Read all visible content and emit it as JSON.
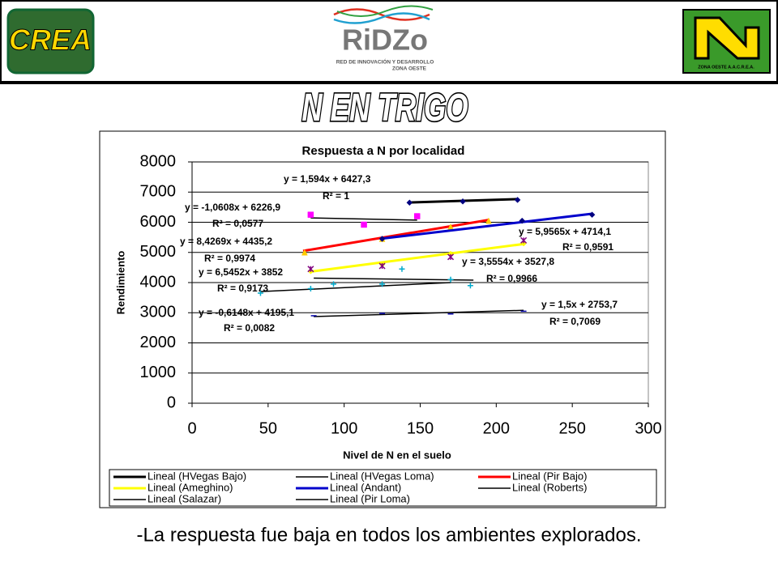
{
  "header": {
    "left_logo": "CREA",
    "center_logo": "RiDZo",
    "center_logo_line1": "RED DE INNOVACIÓN Y DESARROLLO",
    "center_logo_line2": "ZONA OESTE",
    "right_logo": "ZONA OESTE A.A.C.R.E.A."
  },
  "slide_title": "N EN TRIGO",
  "chart_data": {
    "type": "scatter",
    "title": "Respuesta a N por localidad",
    "x_label": "Nivel de N en el suelo",
    "y_label": "Rendimiento",
    "xlim": [
      0,
      300
    ],
    "xticks": [
      0,
      50,
      100,
      150,
      200,
      250,
      300
    ],
    "ylim": [
      0,
      8000
    ],
    "yticks": [
      0,
      1000,
      2000,
      3000,
      4000,
      5000,
      6000,
      7000,
      8000
    ],
    "grid": true,
    "series": [
      {
        "name": "Lineal (HVegas Bajo)",
        "color": "#000000",
        "marker": "diamond",
        "marker_color": "#000080",
        "x": [
          143,
          178,
          214
        ],
        "values": [
          6650,
          6690,
          6740
        ],
        "trend_x": [
          143,
          214
        ],
        "trend_y": [
          6655,
          6768
        ],
        "line_width": 3
      },
      {
        "name": "Lineal (HVegas Loma)",
        "color": "#000000",
        "marker": "square",
        "marker_color": "#ff00ff",
        "x": [
          78,
          113,
          148
        ],
        "values": [
          6250,
          5920,
          6200
        ],
        "trend_x": [
          78,
          148
        ],
        "trend_y": [
          6144,
          6070
        ],
        "line_width": 1.5
      },
      {
        "name": "Lineal (Pir Bajo)",
        "color": "#ff0000",
        "marker": "triangle",
        "marker_color": "#ffcc00",
        "x": [
          74,
          125,
          170,
          195
        ],
        "values": [
          5000,
          5450,
          5850,
          6050
        ],
        "trend_x": [
          73,
          195
        ],
        "trend_y": [
          5050,
          6078
        ],
        "line_width": 3
      },
      {
        "name": "Lineal (Ameghino)",
        "color": "#ffff00",
        "marker": "diamond",
        "marker_color": "#ffff00",
        "x": [
          78,
          125,
          170,
          218
        ],
        "values": [
          4380,
          4600,
          4950,
          5300
        ],
        "trend_x": [
          78,
          218
        ],
        "trend_y": [
          4363,
          5279
        ],
        "line_width": 3
      },
      {
        "name": "Lineal (Andant)",
        "color": "#0000cc",
        "marker": "diamond",
        "marker_color": "#000080",
        "x": [
          125,
          217,
          263
        ],
        "values": [
          5450,
          6050,
          6250
        ],
        "trend_x": [
          125,
          263
        ],
        "trend_y": [
          5459,
          6281
        ],
        "line_width": 3
      },
      {
        "name": "Lineal (Roberts)",
        "color": "#000000",
        "marker": "asterisk",
        "marker_color": "#800080",
        "x": [
          78,
          125,
          170,
          218
        ],
        "values": [
          4450,
          4550,
          4850,
          5400
        ],
        "trend_x": [
          45,
          170
        ],
        "trend_y": [
          3700,
          4000
        ],
        "line_width": 1.5
      },
      {
        "name": "Lineal (Salazar)",
        "color": "#000000",
        "marker": "plus",
        "marker_color": "#00aacc",
        "x": [
          45,
          78,
          93,
          125,
          138,
          170,
          183
        ],
        "values": [
          3650,
          3800,
          3950,
          3950,
          4450,
          4100,
          3900
        ],
        "trend_x": [
          80,
          185
        ],
        "trend_y": [
          4146,
          4081
        ],
        "line_width": 1.5
      },
      {
        "name": "Lineal (Pir Loma)",
        "color": "#000000",
        "marker": "dash",
        "marker_color": "#0000aa",
        "x": [
          80,
          125,
          170,
          218
        ],
        "values": [
          2900,
          2980,
          2960,
          3050
        ],
        "trend_x": [
          80,
          218
        ],
        "trend_y": [
          2874,
          3081
        ],
        "line_width": 1.5
      }
    ],
    "annotations": [
      "y = 1,594x + 6427,3",
      "R² = 1",
      "y = -1,0608x + 6226,9",
      "R² = 0,0577",
      "y = 8,4269x + 4435,2",
      "R² = 0,9974",
      "y = 6,5452x + 3852",
      "R² = 0,9173",
      "y = -0,6148x + 4195,1",
      "R² = 0,0082",
      "y = 5,9565x + 4714,1",
      "R² = 0,9591",
      "y = 3,5554x + 3527,8",
      "R² = 0,9966",
      "y = 1,5x + 2753,7",
      "R² = 0,7069"
    ]
  },
  "caption": "-La respuesta fue baja en todos los ambientes explorados."
}
